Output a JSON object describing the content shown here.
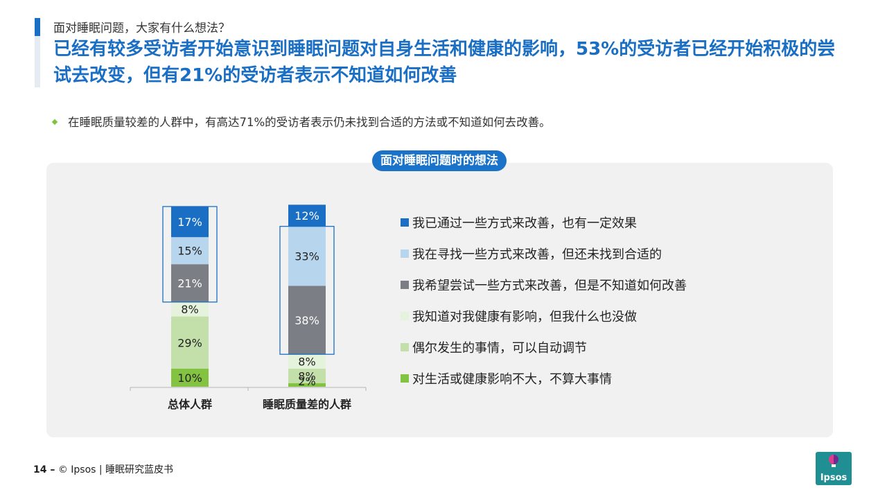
{
  "header": {
    "question": "面对睡眠问题，大家有什么想法？",
    "headline": "已经有较多受访者开始意识到睡眠问题对自身生活和健康的影响，53%的受访者已经开始积极的尝试去改变，但有21%的受访者表示不知道如何改善"
  },
  "bullet": "在睡眠质量较差的人群中，有高达71%的受访者表示仍未找到合适的方法或不知道如何去改善。",
  "panel": {
    "title": "面对睡眠问题时的想法"
  },
  "chart_data": {
    "type": "bar",
    "stacked": true,
    "percent": true,
    "categories": [
      "总体人群",
      "睡眠质量差的人群"
    ],
    "series": [
      {
        "name": "我已通过一些方式来改善，也有一定效果",
        "values": [
          17,
          12
        ],
        "color": "#1a6fc4",
        "label_color": "#ffffff"
      },
      {
        "name": "我在寻找一些方式来改善，但还未找到合适的",
        "values": [
          15,
          33
        ],
        "color": "#b8d5ee",
        "label_color": "#222222"
      },
      {
        "name": "我希望尝试一些方式来改善，但是不知道如何改善",
        "values": [
          21,
          38
        ],
        "color": "#7b7e85",
        "label_color": "#ffffff"
      },
      {
        "name": "我知道对我健康有影响，但我什么也没做",
        "values": [
          8,
          8
        ],
        "color": "#e6f3dc",
        "label_color": "#222222"
      },
      {
        "name": "偶尔发生的事情，可以自动调节",
        "values": [
          29,
          8
        ],
        "color": "#c3e0ab",
        "label_color": "#222222"
      },
      {
        "name": "对生活或健康影响不大，不算大事情",
        "values": [
          10,
          2
        ],
        "color": "#84c341",
        "label_color": "#222222"
      }
    ],
    "data_labels": [
      [
        "17%",
        "15%",
        "21%",
        "8%",
        "29%",
        "10%"
      ],
      [
        "12%",
        "33%",
        "38%",
        "8%",
        "8%",
        "2%"
      ]
    ],
    "highlight_groups": [
      {
        "category": "总体人群",
        "series_from": 0,
        "series_to": 2
      },
      {
        "category": "睡眠质量差的人群",
        "series_from": 1,
        "series_to": 2
      }
    ],
    "legend_position": "right",
    "grid": false,
    "xlabel": "",
    "ylabel": ""
  },
  "footer": {
    "page": "14 –",
    "copyright": "© Ipsos | 睡眠研究蓝皮书"
  },
  "logo": {
    "text": "Ipsos"
  }
}
